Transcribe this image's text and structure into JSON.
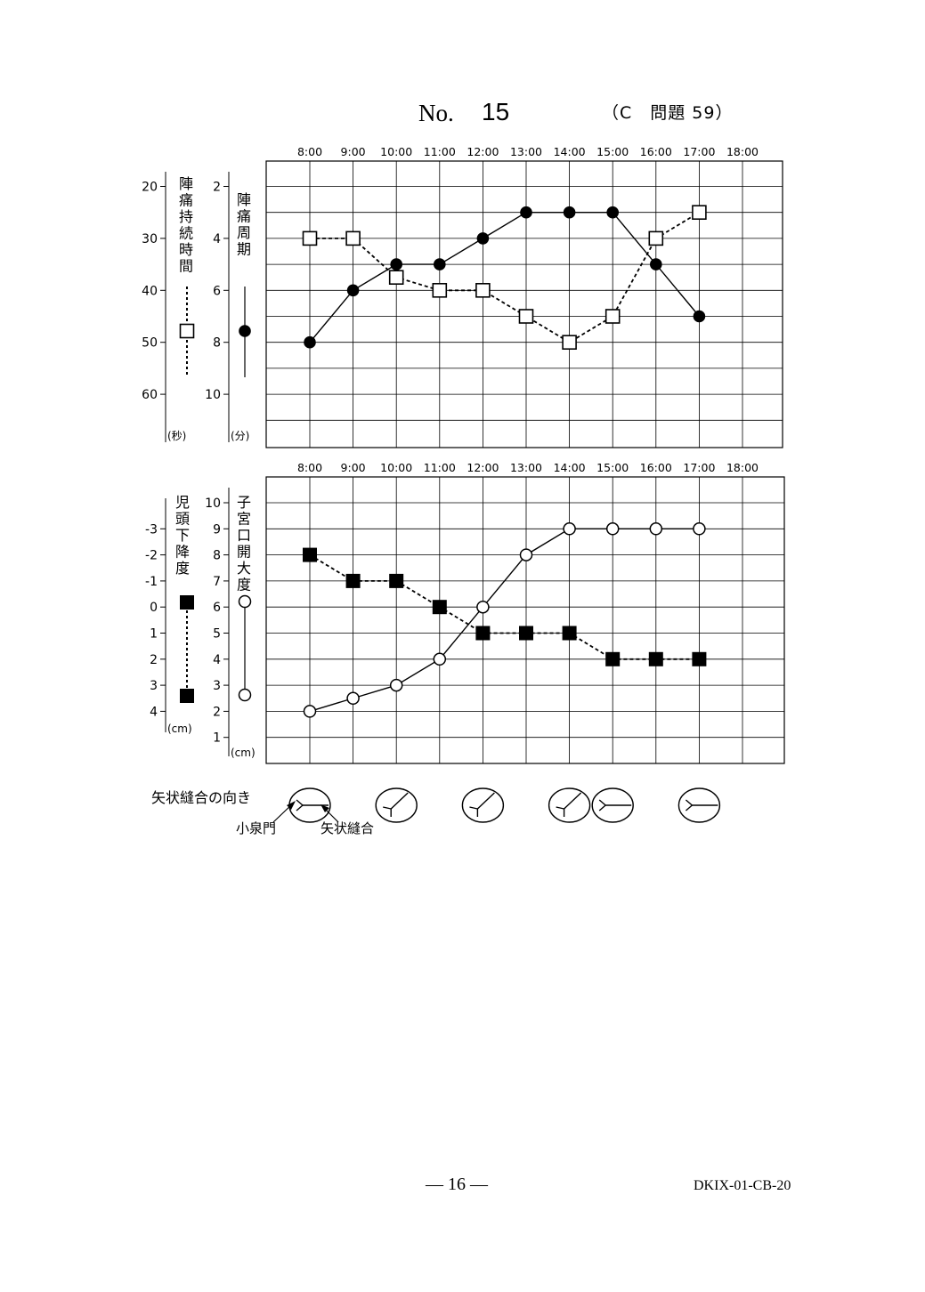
{
  "header": {
    "no_label": "No.",
    "no_number": "15",
    "reference": "（C　問題 59）"
  },
  "footer": {
    "page": "— 16 —",
    "code": "DKIX-01-CB-20"
  },
  "chart_data": [
    {
      "type": "line",
      "x_tick_labels": [
        "8:00",
        "9:00",
        "10:00",
        "11:00",
        "12:00",
        "13:00",
        "14:00",
        "15:00",
        "16:00",
        "17:00",
        "18:00"
      ],
      "left_axis": {
        "label": "陣痛持続時間",
        "unit": "(秒)",
        "ticks": [
          "20",
          "30",
          "40",
          "50",
          "60"
        ],
        "range": [
          15,
          70
        ],
        "reversed": true
      },
      "right_axis": {
        "label": "陣痛周期",
        "unit": "(分)",
        "ticks": [
          "2",
          "4",
          "6",
          "8",
          "10"
        ],
        "range": [
          1,
          12
        ],
        "reversed": true
      },
      "grid": true,
      "series": [
        {
          "name": "陣痛持続時間",
          "axis": "left",
          "marker": "open-square",
          "line": "dashed",
          "x": [
            "8:00",
            "9:00",
            "10:00",
            "11:00",
            "12:00",
            "13:00",
            "14:00",
            "15:00",
            "16:00",
            "17:00"
          ],
          "values": [
            30,
            30,
            37.5,
            40,
            40,
            45,
            50,
            45,
            30,
            25
          ]
        },
        {
          "name": "陣痛周期",
          "axis": "right",
          "marker": "filled-circle",
          "line": "solid",
          "x": [
            "8:00",
            "9:00",
            "10:00",
            "11:00",
            "12:00",
            "13:00",
            "14:00",
            "15:00",
            "16:00",
            "17:00"
          ],
          "values": [
            8,
            6,
            5,
            5,
            4,
            3,
            3,
            3,
            5,
            7
          ]
        }
      ]
    },
    {
      "type": "line",
      "x_tick_labels": [
        "8:00",
        "9:00",
        "10:00",
        "11:00",
        "12:00",
        "13:00",
        "14:00",
        "15:00",
        "16:00",
        "17:00",
        "18:00"
      ],
      "left_axis": {
        "label": "児頭下降度",
        "unit": "(cm)",
        "ticks": [
          "-3",
          "-2",
          "-1",
          "0",
          "1",
          "2",
          "3",
          "4"
        ],
        "range": [
          -4,
          5
        ],
        "reversed": true
      },
      "right_axis": {
        "label": "子宮口開大度",
        "unit": "(cm)",
        "ticks": [
          "1",
          "2",
          "3",
          "4",
          "5",
          "6",
          "7",
          "8",
          "9",
          "10"
        ],
        "range": [
          0,
          11
        ],
        "reversed": false
      },
      "grid": true,
      "series": [
        {
          "name": "児頭下降度",
          "axis": "left",
          "marker": "filled-square",
          "line": "dashed",
          "x": [
            "8:00",
            "9:00",
            "10:00",
            "11:00",
            "12:00",
            "13:00",
            "14:00",
            "15:00",
            "16:00",
            "17:00"
          ],
          "values": [
            -2,
            -1,
            -1,
            0,
            1,
            1,
            1,
            2,
            2,
            2
          ]
        },
        {
          "name": "子宮口開大度",
          "axis": "right",
          "marker": "open-circle",
          "line": "solid",
          "x": [
            "8:00",
            "9:00",
            "10:00",
            "11:00",
            "12:00",
            "13:00",
            "14:00",
            "15:00",
            "16:00",
            "17:00"
          ],
          "values": [
            2,
            2.5,
            3,
            4,
            6,
            8,
            9,
            9,
            9,
            9
          ]
        }
      ]
    }
  ],
  "suture": {
    "title": "矢状縫合の向き",
    "label_fontanelle": "小泉門",
    "label_suture": "矢状縫合",
    "x": [
      "8:00",
      "10:00",
      "12:00",
      "14:00",
      "15:00",
      "17:00"
    ],
    "orientation": [
      "horizontal",
      "oblique",
      "oblique",
      "oblique",
      "horizontal",
      "horizontal"
    ]
  }
}
